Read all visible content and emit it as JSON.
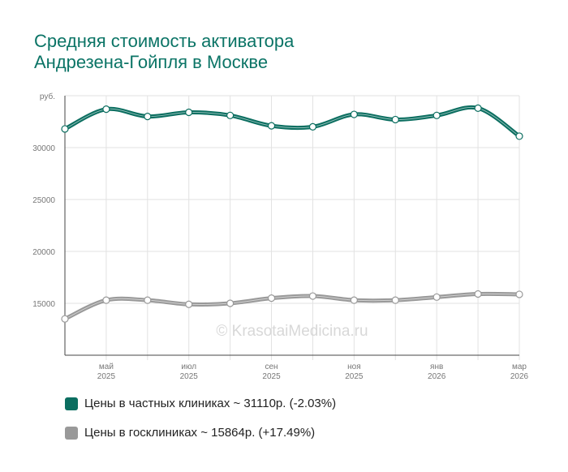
{
  "title_lines": [
    "Средняя стоимость активатора",
    "Андрезена-Гойпля в Москве"
  ],
  "watermark": "© KrasotaiMedicina.ru",
  "colors": {
    "private": "#0b6e60",
    "public": "#999999",
    "title": "#0b7466"
  },
  "legend": [
    {
      "label": "Цены в частных клиниках ~ 31110р. (-2.03%)",
      "color": "#0b6e60"
    },
    {
      "label": "Цены в госклиниках ~ 15864р. (+17.49%)",
      "color": "#999999"
    }
  ],
  "chart_data": {
    "type": "line",
    "ylabel": "руб.",
    "ylim": [
      10000,
      35000
    ],
    "yticks": [
      "15000",
      "20000",
      "25000",
      "30000"
    ],
    "x": [
      "2025-04",
      "2025-05",
      "2025-06",
      "2025-07",
      "2025-08",
      "2025-09",
      "2025-10",
      "2025-11",
      "2025-12",
      "2026-01",
      "2026-02",
      "2026-03"
    ],
    "xtick_labels": [
      {
        "x": "2025-05",
        "month": "май",
        "year": "2025"
      },
      {
        "x": "2025-07",
        "month": "июл",
        "year": "2025"
      },
      {
        "x": "2025-09",
        "month": "сен",
        "year": "2025"
      },
      {
        "x": "2025-11",
        "month": "ноя",
        "year": "2025"
      },
      {
        "x": "2026-01",
        "month": "янв",
        "year": "2026"
      },
      {
        "x": "2026-03",
        "month": "мар",
        "year": "2026"
      }
    ],
    "series": [
      {
        "name": "Цены в частных клиниках",
        "values": [
          31800,
          33700,
          33000,
          33400,
          33100,
          32100,
          32000,
          33200,
          32700,
          33100,
          33800,
          31100
        ]
      },
      {
        "name": "Цены в госклиниках",
        "values": [
          13500,
          15300,
          15300,
          14900,
          15000,
          15500,
          15700,
          15300,
          15300,
          15600,
          15900,
          15864
        ]
      }
    ]
  }
}
